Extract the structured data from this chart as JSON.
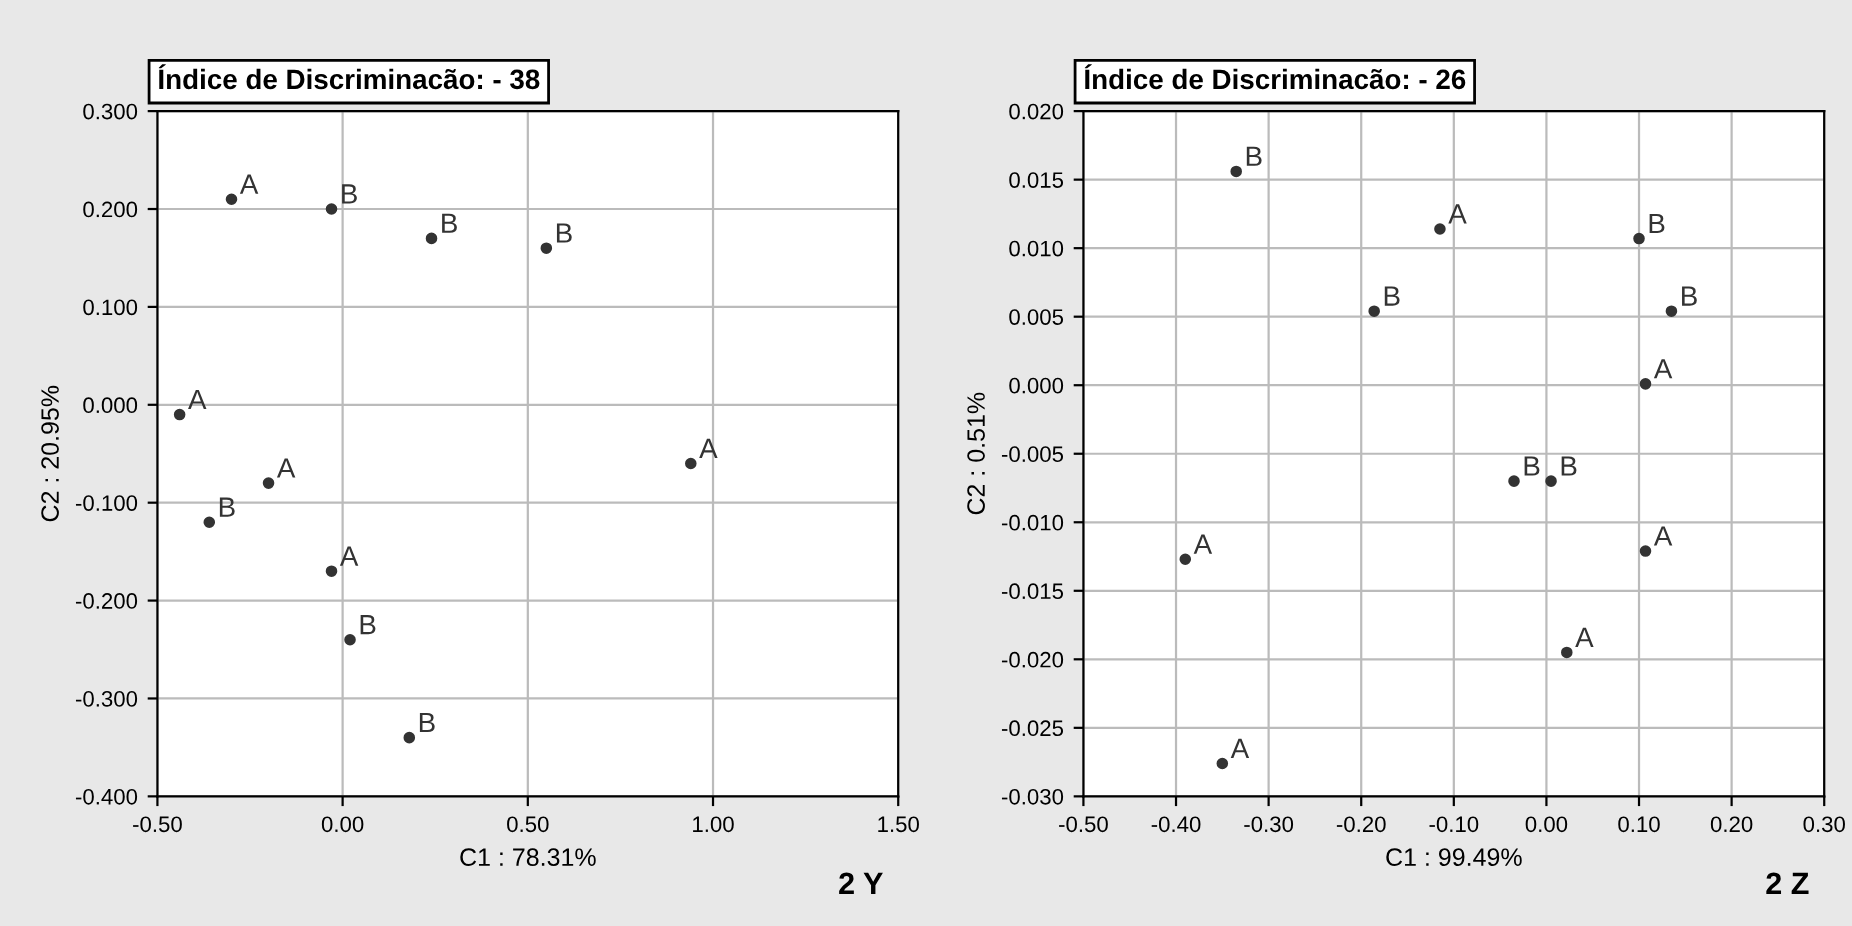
{
  "chart_data": [
    {
      "type": "scatter",
      "title": "Índice de Discriminacão: - 38",
      "xlabel": "C1 : 78.31%",
      "ylabel": "C2 : 20.95%",
      "annotations": [
        "2 Y"
      ],
      "grid": true,
      "marker": "circle",
      "legend": false,
      "xlim": [
        -0.5,
        1.5
      ],
      "xticks": [
        {
          "value": -0.5,
          "label": "-0.50"
        },
        {
          "value": 0,
          "label": "0.00"
        },
        {
          "value": 0.5,
          "label": "0.50"
        },
        {
          "value": 1,
          "label": "1.00"
        },
        {
          "value": 1.5,
          "label": "1.50"
        }
      ],
      "ylim": [
        -0.4,
        0.3
      ],
      "yticks": [
        {
          "value": -0.4,
          "label": "-0.400"
        },
        {
          "value": -0.3,
          "label": "-0.300"
        },
        {
          "value": -0.2,
          "label": "-0.200"
        },
        {
          "value": -0.1,
          "label": "-0.100"
        },
        {
          "value": 0,
          "label": "0.000"
        },
        {
          "value": 0.1,
          "label": "0.100"
        },
        {
          "value": 0.2,
          "label": "0.200"
        },
        {
          "value": 0.3,
          "label": "0.300"
        }
      ],
      "series": [
        {
          "name": "A",
          "color": "#333333",
          "x": [
            -0.3,
            -0.44,
            -0.2,
            0.94,
            -0.03
          ],
          "values": [
            0.21,
            -0.01,
            -0.08,
            -0.06,
            -0.17
          ]
        },
        {
          "name": "B",
          "color": "#333333",
          "x": [
            -0.03,
            0.24,
            0.55,
            -0.36,
            0.02,
            0.18
          ],
          "values": [
            0.2,
            0.17,
            0.16,
            -0.12,
            -0.24,
            -0.34
          ]
        }
      ]
    },
    {
      "type": "scatter",
      "title": "Índice de Discriminacão: - 26",
      "xlabel": "C1 : 99.49%",
      "ylabel": "C2 : 0.51%",
      "annotations": [
        "2 Z"
      ],
      "grid": true,
      "marker": "circle",
      "legend": false,
      "xlim": [
        -0.5,
        0.3
      ],
      "xticks": [
        {
          "value": -0.5,
          "label": "-0.50"
        },
        {
          "value": -0.4,
          "label": "-0.40"
        },
        {
          "value": -0.3,
          "label": "-0.30"
        },
        {
          "value": -0.2,
          "label": "-0.20"
        },
        {
          "value": -0.1,
          "label": "-0.10"
        },
        {
          "value": 0,
          "label": "0.00"
        },
        {
          "value": 0.1,
          "label": "0.10"
        },
        {
          "value": 0.2,
          "label": "0.20"
        },
        {
          "value": 0.3,
          "label": "0.30"
        }
      ],
      "ylim": [
        -0.03,
        0.02
      ],
      "yticks": [
        {
          "value": -0.03,
          "label": "-0.030"
        },
        {
          "value": -0.025,
          "label": "-0.025"
        },
        {
          "value": -0.02,
          "label": "-0.020"
        },
        {
          "value": -0.015,
          "label": "-0.015"
        },
        {
          "value": -0.01,
          "label": "-0.010"
        },
        {
          "value": -0.005,
          "label": "-0.005"
        },
        {
          "value": 0,
          "label": "0.000"
        },
        {
          "value": 0.005,
          "label": "0.005"
        },
        {
          "value": 0.01,
          "label": "0.010"
        },
        {
          "value": 0.015,
          "label": "0.015"
        },
        {
          "value": 0.02,
          "label": "0.020"
        }
      ],
      "series": [
        {
          "name": "A",
          "color": "#333333",
          "x": [
            -0.115,
            0.107,
            -0.39,
            0.107,
            0.022,
            -0.35
          ],
          "values": [
            0.0114,
            0.0001,
            -0.0127,
            -0.0121,
            -0.0195,
            -0.0276
          ]
        },
        {
          "name": "B",
          "color": "#333333",
          "x": [
            -0.335,
            0.1,
            -0.186,
            0.135,
            -0.035,
            0.005
          ],
          "values": [
            0.0156,
            0.0107,
            0.0054,
            0.0054,
            -0.007,
            -0.007
          ]
        }
      ]
    }
  ]
}
